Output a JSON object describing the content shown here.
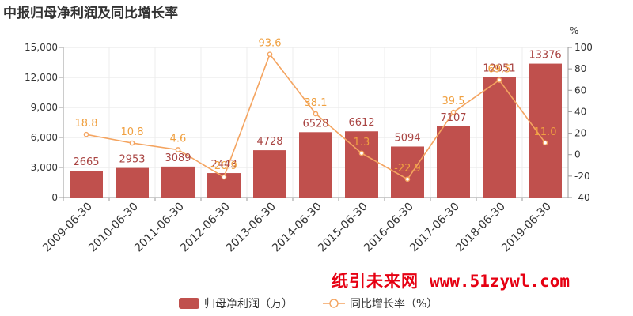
{
  "chart_data": {
    "type": "bar",
    "title": "中报归母净利润及同比增长率",
    "categories": [
      "2009-06-30",
      "2010-06-30",
      "2011-06-30",
      "2012-06-30",
      "2013-06-30",
      "2014-06-30",
      "2015-06-30",
      "2016-06-30",
      "2017-06-30",
      "2018-06-30",
      "2019-06-30"
    ],
    "series": [
      {
        "name": "归母净利润（万）",
        "type": "bar",
        "axis": "left",
        "color": "#c0504d",
        "values": [
          2665,
          2953,
          3089,
          2443,
          4728,
          6528,
          6612,
          5094,
          7107,
          12051,
          13376
        ],
        "labels": [
          "2665",
          "2953",
          "3089",
          "2443",
          "4728",
          "6528",
          "6612",
          "5094",
          "7107",
          "12051",
          "13376"
        ]
      },
      {
        "name": "同比增长率（%）",
        "type": "line",
        "axis": "right",
        "color": "#f4a460",
        "values": [
          18.8,
          10.8,
          4.6,
          -20.9,
          93.6,
          38.1,
          1.3,
          -22.9,
          39.5,
          69.5,
          11.0
        ],
        "labels": [
          "18.8",
          "10.8",
          "4.6",
          "-20.9",
          "93.6",
          "38.1",
          "1.3",
          "-22.9",
          "39.5",
          "69.5",
          "11.0"
        ]
      }
    ],
    "y_left": {
      "ylim": [
        0,
        15000
      ],
      "ticks": [
        0,
        3000,
        6000,
        9000,
        12000,
        15000
      ],
      "tick_labels": [
        "0",
        "3,000",
        "6,000",
        "9,000",
        "12,000",
        "15,000"
      ]
    },
    "y_right": {
      "unit": "%",
      "ylim": [
        -40,
        100
      ],
      "ticks": [
        -40,
        -20,
        0,
        20,
        40,
        60,
        80,
        100
      ],
      "tick_labels": [
        "-40",
        "-20",
        "0",
        "20",
        "40",
        "60",
        "80",
        "100"
      ]
    },
    "grid": true,
    "legend_position": "bottom-center"
  },
  "watermark": {
    "site": "纸引未来网",
    "url": "www.51zywl.com"
  }
}
